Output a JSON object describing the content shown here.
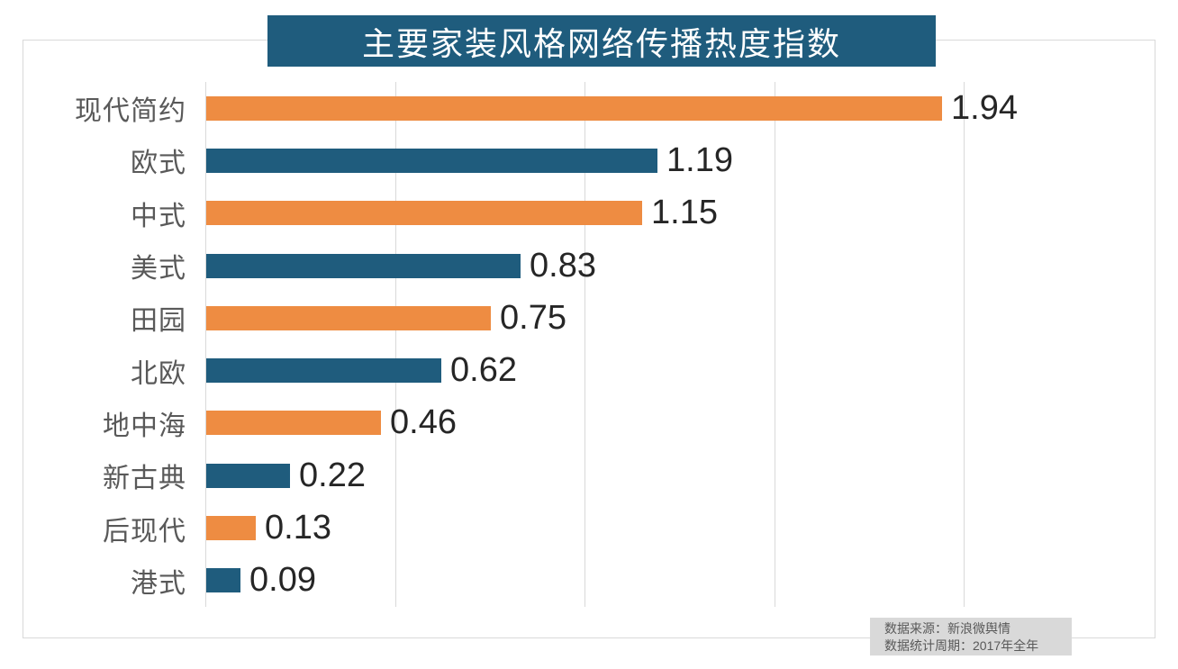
{
  "title": "主要家装风格网络传播热度指数",
  "footer": {
    "line1": "数据来源：新浪微舆情",
    "line2": "数据统计周期：2017年全年"
  },
  "chart_data": {
    "type": "bar",
    "orientation": "horizontal",
    "title": "主要家装风格网络传播热度指数",
    "categories": [
      "现代简约",
      "欧式",
      "中式",
      "美式",
      "田园",
      "北欧",
      "地中海",
      "新古典",
      "后现代",
      "港式"
    ],
    "values": [
      1.94,
      1.19,
      1.15,
      0.83,
      0.75,
      0.62,
      0.46,
      0.22,
      0.13,
      0.09
    ],
    "data_labels": [
      "1.94",
      "1.19",
      "1.15",
      "0.83",
      "0.75",
      "0.62",
      "0.46",
      "0.22",
      "0.13",
      "0.09"
    ],
    "xlim": [
      0,
      2.0
    ],
    "gridline_ticks": [
      0,
      0.5,
      1.0,
      1.5,
      2.0
    ],
    "grid": "vertical-only",
    "tick_labels_shown": false,
    "legend": "none",
    "bar_color_pattern": [
      "#ee8c42",
      "#1f5c7d"
    ]
  },
  "style": {
    "accent_orange": "#ee8c42",
    "accent_teal": "#1f5c7d",
    "title_bg": "#1f5c7d",
    "title_text_color": "#ffffff",
    "grid_color": "#d9d9d9",
    "category_label_color": "#595959",
    "value_label_color": "#262626",
    "footer_bg": "#d9d9d9",
    "footer_text_color": "#595959"
  }
}
